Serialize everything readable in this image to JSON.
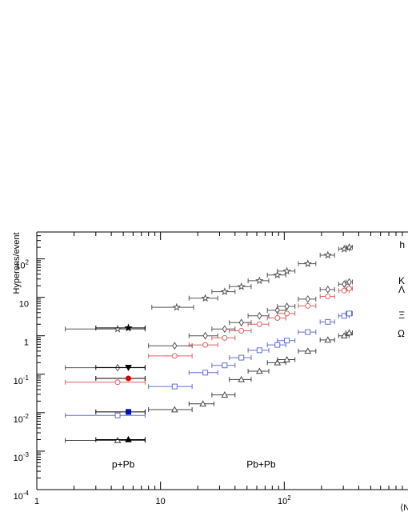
{
  "chart_data": {
    "type": "scatter",
    "title": "",
    "xlabel": "⟨N",
    "ylabel": "Hyperons/event",
    "xscale": "log",
    "yscale": "log",
    "xlim": [
      1,
      1000
    ],
    "ylim": [
      0.0001,
      500
    ],
    "grid": false,
    "x_ticks": [
      {
        "value": 1,
        "label": "1"
      },
      {
        "value": 10,
        "label": "10"
      },
      {
        "value": 100,
        "label": "10",
        "sup": "2"
      }
    ],
    "y_ticks": [
      {
        "value": 0.0001,
        "label": "10",
        "sup": "-4"
      },
      {
        "value": 0.001,
        "label": "10",
        "sup": "-3"
      },
      {
        "value": 0.01,
        "label": "10",
        "sup": "-2"
      },
      {
        "value": 0.1,
        "label": "10",
        "sup": "-1"
      },
      {
        "value": 1,
        "label": "1"
      },
      {
        "value": 10,
        "label": "10"
      },
      {
        "value": 100,
        "label": "10",
        "sup": "2"
      }
    ],
    "annotations": [
      {
        "text": "p+Pb",
        "x": 5,
        "y": 0.00037
      },
      {
        "text": "Pb+Pb",
        "x": 65,
        "y": 0.00037
      }
    ],
    "series": [
      {
        "label": "h",
        "color": "#555555",
        "marker": "star",
        "label_y": 230,
        "points": [
          {
            "x": 13.5,
            "y": 5.5,
            "xerr": 5
          },
          {
            "x": 23,
            "y": 9.5,
            "xerr": 6
          },
          {
            "x": 33,
            "y": 14,
            "xerr": 7
          },
          {
            "x": 45,
            "y": 19,
            "xerr": 9
          },
          {
            "x": 63,
            "y": 27,
            "xerr": 12
          },
          {
            "x": 88,
            "y": 38,
            "xerr": 15
          },
          {
            "x": 105,
            "y": 48,
            "xerr": 17
          },
          {
            "x": 155,
            "y": 75,
            "xerr": 25
          },
          {
            "x": 225,
            "y": 125,
            "xerr": 30
          },
          {
            "x": 305,
            "y": 180,
            "xerr": 30
          },
          {
            "x": 335,
            "y": 200,
            "xerr": 20
          }
        ],
        "pPb_open": {
          "x": 4.5,
          "y": 1.5,
          "xerr_lo": 2.8,
          "xerr_hi": 3
        },
        "pPb_filled": {
          "x": 5.5,
          "y": 1.6,
          "xerr_lo": 2.5,
          "xerr_hi": 2
        }
      },
      {
        "label": "K",
        "color": "#555555",
        "marker": "diamond",
        "label_y": 27,
        "points": [
          {
            "x": 13,
            "y": 0.55,
            "xerr": 5
          },
          {
            "x": 23,
            "y": 1.0,
            "xerr": 6
          },
          {
            "x": 33,
            "y": 1.5,
            "xerr": 7
          },
          {
            "x": 45,
            "y": 2.2,
            "xerr": 9
          },
          {
            "x": 63,
            "y": 3.3,
            "xerr": 12
          },
          {
            "x": 88,
            "y": 4.6,
            "xerr": 15
          },
          {
            "x": 105,
            "y": 5.8,
            "xerr": 17
          },
          {
            "x": 155,
            "y": 9.0,
            "xerr": 25
          },
          {
            "x": 225,
            "y": 16,
            "xerr": 30
          },
          {
            "x": 305,
            "y": 22,
            "xerr": 30
          },
          {
            "x": 335,
            "y": 25,
            "xerr": 20
          }
        ],
        "pPb_open": {
          "x": 4.5,
          "y": 0.148,
          "xerr_lo": 2.8,
          "xerr_hi": 3
        },
        "pPb_filled": {
          "x": 5.5,
          "y": 0.15,
          "xerr_lo": 2.5,
          "xerr_hi": 2
        }
      },
      {
        "label": "Λ",
        "color": "#e06060",
        "marker": "circle",
        "label_y": 16,
        "points": [
          {
            "x": 13,
            "y": 0.3,
            "xerr": 5
          },
          {
            "x": 23,
            "y": 0.58,
            "xerr": 6
          },
          {
            "x": 33,
            "y": 0.88,
            "xerr": 7
          },
          {
            "x": 45,
            "y": 1.35,
            "xerr": 9
          },
          {
            "x": 63,
            "y": 2.0,
            "xerr": 12
          },
          {
            "x": 88,
            "y": 2.9,
            "xerr": 15
          },
          {
            "x": 105,
            "y": 3.8,
            "xerr": 17
          },
          {
            "x": 155,
            "y": 6.0,
            "xerr": 25
          },
          {
            "x": 225,
            "y": 10.5,
            "xerr": 30
          },
          {
            "x": 305,
            "y": 15,
            "xerr": 30
          },
          {
            "x": 335,
            "y": 17,
            "xerr": 20
          }
        ],
        "pPb_open": {
          "x": 4.5,
          "y": 0.062,
          "xerr_lo": 2.8,
          "xerr_hi": 3
        },
        "pPb_filled": {
          "x": 5.5,
          "y": 0.078,
          "xerr_lo": 2.5,
          "xerr_hi": 2
        }
      },
      {
        "label": "Ξ",
        "color": "#6070d0",
        "marker": "square",
        "label_y": 3.4,
        "points": [
          {
            "x": 13,
            "y": 0.048,
            "xerr": 5
          },
          {
            "x": 23,
            "y": 0.11,
            "xerr": 6
          },
          {
            "x": 33,
            "y": 0.17,
            "xerr": 7
          },
          {
            "x": 45,
            "y": 0.27,
            "xerr": 9
          },
          {
            "x": 63,
            "y": 0.42,
            "xerr": 12
          },
          {
            "x": 88,
            "y": 0.58,
            "xerr": 15
          },
          {
            "x": 105,
            "y": 0.75,
            "xerr": 17
          },
          {
            "x": 155,
            "y": 1.25,
            "xerr": 25
          },
          {
            "x": 225,
            "y": 2.3,
            "xerr": 30
          },
          {
            "x": 305,
            "y": 3.3,
            "xerr": 30
          },
          {
            "x": 335,
            "y": 3.8,
            "xerr": 20
          }
        ],
        "pPb_open": {
          "x": 4.5,
          "y": 0.0085,
          "xerr_lo": 2.8,
          "xerr_hi": 3
        },
        "pPb_filled": {
          "x": 5.5,
          "y": 0.0105,
          "xerr_lo": 2.5,
          "xerr_hi": 2
        }
      },
      {
        "label": "Ω",
        "color": "#444444",
        "marker": "triangle",
        "label_y": 1.15,
        "points": [
          {
            "x": 13,
            "y": 0.012,
            "xerr": 5
          },
          {
            "x": 22,
            "y": 0.017,
            "xerr": 5
          },
          {
            "x": 33,
            "y": 0.029,
            "xerr": 7
          },
          {
            "x": 45,
            "y": 0.073,
            "xerr": 9
          },
          {
            "x": 63,
            "y": 0.12,
            "xerr": 12
          },
          {
            "x": 88,
            "y": 0.2,
            "xerr": 15
          },
          {
            "x": 105,
            "y": 0.24,
            "xerr": 17
          },
          {
            "x": 155,
            "y": 0.4,
            "xerr": 25
          },
          {
            "x": 225,
            "y": 0.78,
            "xerr": 30
          },
          {
            "x": 305,
            "y": 1.0,
            "xerr": 30
          },
          {
            "x": 335,
            "y": 1.2,
            "xerr": 20
          }
        ],
        "pPb_open": {
          "x": 4.5,
          "y": 0.0019,
          "xerr_lo": 2.8,
          "xerr_hi": 3
        },
        "pPb_filled": {
          "x": 5.5,
          "y": 0.002,
          "xerr_lo": 2.5,
          "xerr_hi": 2
        }
      }
    ]
  }
}
